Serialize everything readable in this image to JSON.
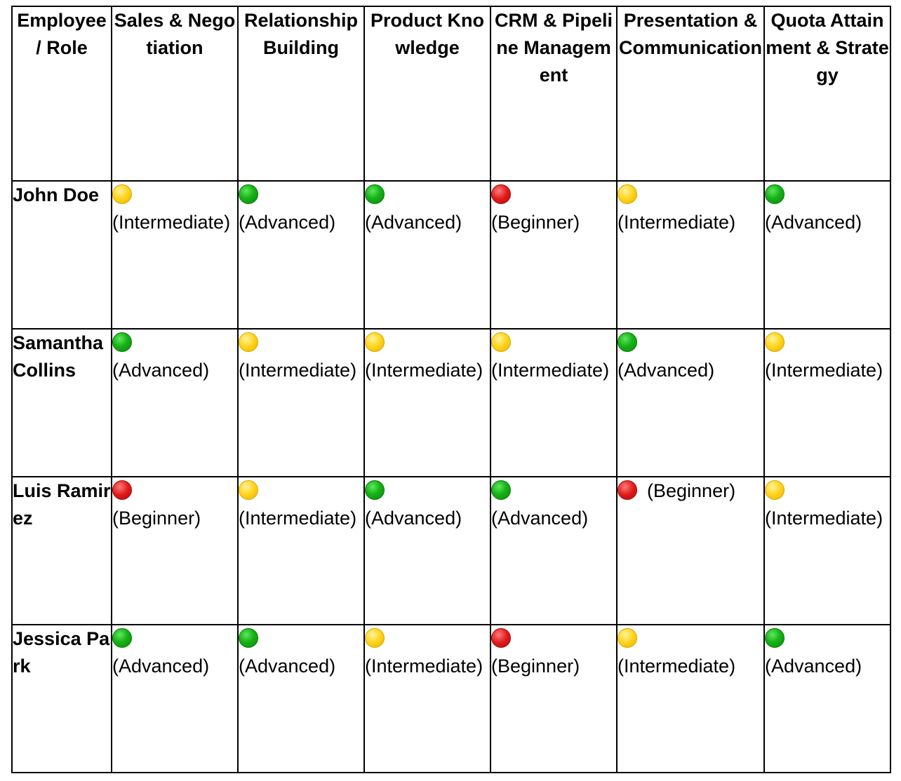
{
  "colors": {
    "advanced": "#17b217",
    "intermediate": "#ffd21a",
    "beginner": "#e01a1a"
  },
  "headers": [
    "Employee / Role",
    "Sales & Negotiation",
    "Relationship Building",
    "Product Knowledge",
    "CRM & Pipeline Management",
    "Presentation & Communication",
    "Quota Attainment & Strategy"
  ],
  "rows": [
    {
      "name": "John Doe",
      "cells": [
        {
          "status": "yellow-circle-icon",
          "level": "(Intermediate)"
        },
        {
          "status": "green-circle-icon",
          "level": "(Advanced)"
        },
        {
          "status": "green-circle-icon",
          "level": "(Advanced)"
        },
        {
          "status": "red-circle-icon",
          "level": "(Beginner)"
        },
        {
          "status": "yellow-circle-icon",
          "level": "(Intermediate)"
        },
        {
          "status": "green-circle-icon",
          "level": "(Advanced)"
        }
      ]
    },
    {
      "name": "Samantha Collins",
      "cells": [
        {
          "status": "green-circle-icon",
          "level": "(Advanced)"
        },
        {
          "status": "yellow-circle-icon",
          "level": "(Intermediate)"
        },
        {
          "status": "yellow-circle-icon",
          "level": "(Intermediate)"
        },
        {
          "status": "yellow-circle-icon",
          "level": "(Intermediate)"
        },
        {
          "status": "green-circle-icon",
          "level": "(Advanced)"
        },
        {
          "status": "yellow-circle-icon",
          "level": "(Intermediate)"
        }
      ]
    },
    {
      "name": "Luis Ramirez",
      "cells": [
        {
          "status": "red-circle-icon",
          "level": "(Beginner)"
        },
        {
          "status": "yellow-circle-icon",
          "level": "(Intermediate)"
        },
        {
          "status": "green-circle-icon",
          "level": "(Advanced)"
        },
        {
          "status": "green-circle-icon",
          "level": "(Advanced)"
        },
        {
          "status": "red-circle-icon",
          "level": "(Beginner)",
          "inline": true
        },
        {
          "status": "yellow-circle-icon",
          "level": "(Intermediate)"
        }
      ]
    },
    {
      "name": "Jessica Park",
      "cells": [
        {
          "status": "green-circle-icon",
          "level": "(Advanced)"
        },
        {
          "status": "green-circle-icon",
          "level": "(Advanced)"
        },
        {
          "status": "yellow-circle-icon",
          "level": "(Intermediate)"
        },
        {
          "status": "red-circle-icon",
          "level": "(Beginner)"
        },
        {
          "status": "yellow-circle-icon",
          "level": "(Intermediate)"
        },
        {
          "status": "green-circle-icon",
          "level": "(Advanced)"
        }
      ]
    }
  ]
}
